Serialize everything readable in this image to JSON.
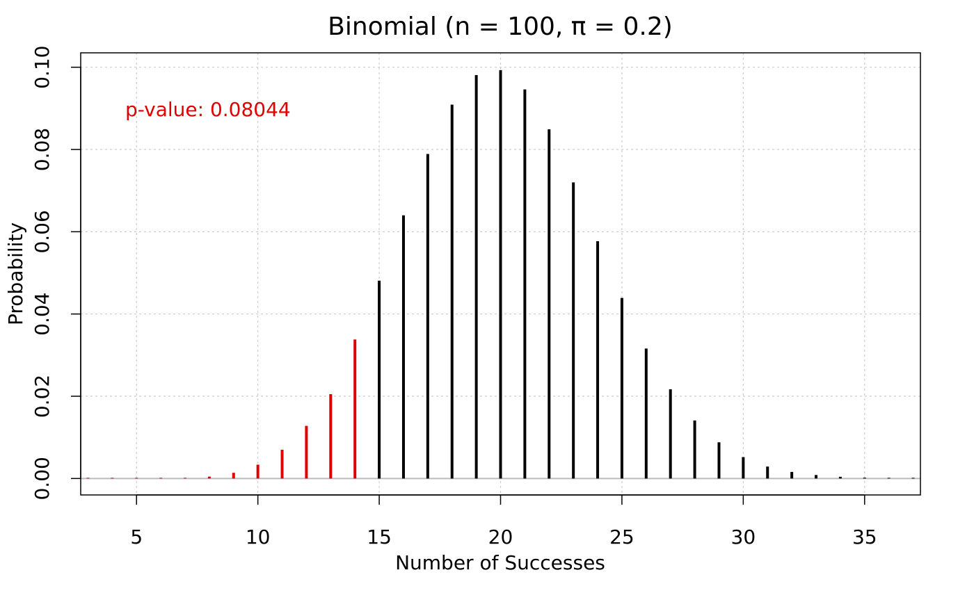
{
  "chart_data": {
    "type": "bar",
    "title": "Binomial (n = 100, π = 0.2)",
    "xlabel": "Number of Successes",
    "ylabel": "Probability",
    "annotation": "p-value: 0.08044",
    "xlim": [
      2.7,
      37.3
    ],
    "ylim": [
      -0.004,
      0.1035
    ],
    "x_ticks": [
      5,
      10,
      15,
      20,
      25,
      30,
      35
    ],
    "x_tick_labels": [
      "5",
      "10",
      "15",
      "20",
      "25",
      "30",
      "35"
    ],
    "y_ticks": [
      0,
      0.02,
      0.04,
      0.06,
      0.08,
      0.1
    ],
    "y_tick_labels": [
      "0.00",
      "0.02",
      "0.04",
      "0.06",
      "0.08",
      "0.10"
    ],
    "grid": true,
    "highlight_color": "#e00000",
    "bar_color": "#000000",
    "highlight_max_x": 14,
    "x": [
      3,
      4,
      5,
      6,
      7,
      8,
      9,
      10,
      11,
      12,
      13,
      14,
      15,
      16,
      17,
      18,
      19,
      20,
      21,
      22,
      23,
      24,
      25,
      26,
      27,
      28,
      29,
      30,
      31,
      32,
      33,
      34,
      35,
      36,
      37
    ],
    "values": [
      0.0,
      0.0,
      1e-05,
      4e-05,
      0.00014,
      0.00046,
      0.00138,
      0.00336,
      0.00699,
      0.0128,
      0.0205,
      0.0338,
      0.0481,
      0.064,
      0.0789,
      0.0909,
      0.0981,
      0.0993,
      0.0946,
      0.0849,
      0.072,
      0.0577,
      0.0439,
      0.0316,
      0.0217,
      0.0141,
      0.0088,
      0.0052,
      0.0029,
      0.0016,
      0.00084,
      0.00042,
      0.0002,
      9e-05,
      4e-05
    ]
  }
}
